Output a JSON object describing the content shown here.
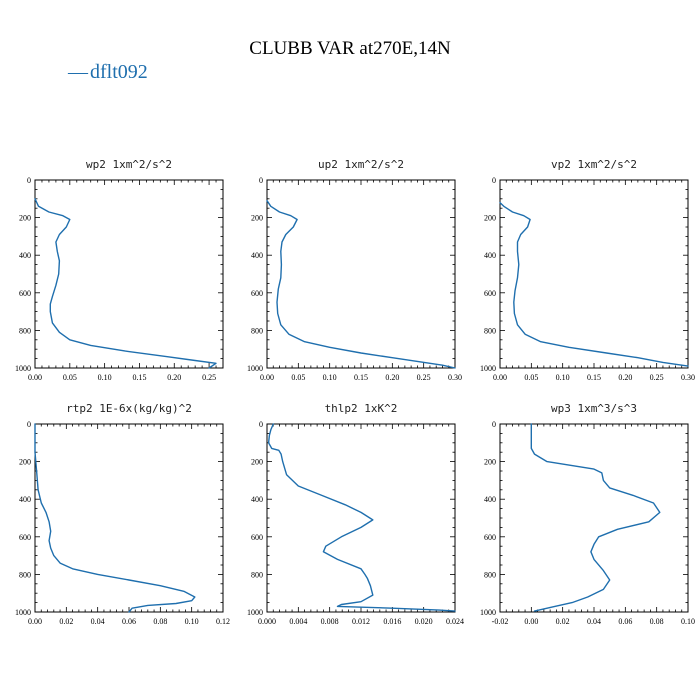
{
  "title": "CLUBB VAR at270E,14N",
  "colors": {
    "series": "#1f6fae"
  },
  "legend": {
    "entries": [
      "dflt092"
    ],
    "marker": "—"
  },
  "chart_data": [
    {
      "type": "line",
      "title": "wp2  1xm^2/s^2",
      "xlim": [
        0,
        0.27
      ],
      "ylim": [
        0,
        1000
      ],
      "y_inverted": true,
      "xticks": [
        0,
        0.05,
        0.1,
        0.15,
        0.2,
        0.25
      ],
      "xtick_labels": [
        "0.00",
        "0.05",
        "0.10",
        "0.15",
        "0.20",
        "0.25"
      ],
      "yticks": [
        0,
        200,
        400,
        600,
        800,
        1000
      ],
      "ytick_labels": [
        "0",
        "200",
        "400",
        "600",
        "800",
        "1000"
      ],
      "series": [
        {
          "name": "dflt092",
          "x": [
            0.0,
            0.005,
            0.02,
            0.04,
            0.05,
            0.045,
            0.035,
            0.03,
            0.032,
            0.035,
            0.034,
            0.03,
            0.025,
            0.022,
            0.022,
            0.025,
            0.035,
            0.05,
            0.08,
            0.13,
            0.19,
            0.23,
            0.26,
            0.25
          ],
          "y": [
            100,
            140,
            170,
            190,
            210,
            250,
            290,
            330,
            380,
            430,
            500,
            560,
            620,
            660,
            700,
            760,
            810,
            850,
            880,
            910,
            940,
            960,
            975,
            1000
          ]
        }
      ]
    },
    {
      "type": "line",
      "title": "up2  1xm^2/s^2",
      "xlim": [
        0,
        0.3
      ],
      "ylim": [
        0,
        1000
      ],
      "y_inverted": true,
      "xticks": [
        0,
        0.05,
        0.1,
        0.15,
        0.2,
        0.25,
        0.3
      ],
      "xtick_labels": [
        "0.00",
        "0.05",
        "0.10",
        "0.15",
        "0.20",
        "0.25",
        "0.30"
      ],
      "yticks": [
        0,
        200,
        400,
        600,
        800,
        1000
      ],
      "ytick_labels": [
        "0",
        "200",
        "400",
        "600",
        "800",
        "1000"
      ],
      "series": [
        {
          "name": "dflt092",
          "x": [
            0.0,
            0.006,
            0.02,
            0.038,
            0.048,
            0.042,
            0.03,
            0.024,
            0.022,
            0.023,
            0.022,
            0.018,
            0.016,
            0.017,
            0.022,
            0.035,
            0.06,
            0.1,
            0.15,
            0.2,
            0.24,
            0.28,
            0.3
          ],
          "y": [
            110,
            140,
            170,
            190,
            210,
            250,
            290,
            330,
            380,
            450,
            520,
            580,
            650,
            710,
            770,
            820,
            860,
            890,
            920,
            945,
            965,
            985,
            1000
          ]
        }
      ]
    },
    {
      "type": "line",
      "title": "vp2  1xm^2/s^2",
      "xlim": [
        0,
        0.3
      ],
      "ylim": [
        0,
        1000
      ],
      "y_inverted": true,
      "xticks": [
        0,
        0.05,
        0.1,
        0.15,
        0.2,
        0.25,
        0.3
      ],
      "xtick_labels": [
        "0.00",
        "0.05",
        "0.10",
        "0.15",
        "0.20",
        "0.25",
        "0.30"
      ],
      "yticks": [
        0,
        200,
        400,
        600,
        800,
        1000
      ],
      "ytick_labels": [
        "0",
        "200",
        "400",
        "600",
        "800",
        "1000"
      ],
      "series": [
        {
          "name": "dflt092",
          "x": [
            0.0,
            0.006,
            0.02,
            0.038,
            0.048,
            0.044,
            0.033,
            0.028,
            0.028,
            0.03,
            0.028,
            0.024,
            0.022,
            0.023,
            0.028,
            0.04,
            0.065,
            0.11,
            0.17,
            0.22,
            0.26,
            0.3
          ],
          "y": [
            120,
            140,
            170,
            190,
            210,
            250,
            290,
            330,
            380,
            450,
            520,
            590,
            650,
            710,
            770,
            820,
            860,
            890,
            920,
            945,
            970,
            990
          ]
        }
      ]
    },
    {
      "type": "line",
      "title": "rtp2  1E-6x(kg/kg)^2",
      "xlim": [
        0,
        0.12
      ],
      "ylim": [
        0,
        1000
      ],
      "y_inverted": true,
      "xticks": [
        0,
        0.02,
        0.04,
        0.06,
        0.08,
        0.1,
        0.12
      ],
      "xtick_labels": [
        "0.00",
        "0.02",
        "0.04",
        "0.06",
        "0.08",
        "0.10",
        "0.12"
      ],
      "yticks": [
        0,
        200,
        400,
        600,
        800,
        1000
      ],
      "ytick_labels": [
        "0",
        "200",
        "400",
        "600",
        "800",
        "1000"
      ],
      "series": [
        {
          "name": "dflt092",
          "x": [
            0.0,
            0.0,
            0.001,
            0.002,
            0.004,
            0.007,
            0.009,
            0.01,
            0.009,
            0.01,
            0.012,
            0.016,
            0.024,
            0.04,
            0.06,
            0.08,
            0.095,
            0.102,
            0.1,
            0.09,
            0.072,
            0.062,
            0.06
          ],
          "y": [
            0,
            150,
            250,
            350,
            420,
            470,
            520,
            570,
            620,
            660,
            700,
            740,
            770,
            800,
            830,
            860,
            890,
            920,
            940,
            955,
            965,
            980,
            1000
          ]
        }
      ]
    },
    {
      "type": "line",
      "title": "thlp2  1xK^2",
      "xlim": [
        0,
        0.024
      ],
      "ylim": [
        0,
        1000
      ],
      "y_inverted": true,
      "xticks": [
        0,
        0.004,
        0.008,
        0.012,
        0.016,
        0.02,
        0.024
      ],
      "xtick_labels": [
        "0.000",
        "0.004",
        "0.008",
        "0.012",
        "0.016",
        "0.020",
        "0.024"
      ],
      "yticks": [
        0,
        200,
        400,
        600,
        800,
        1000
      ],
      "ytick_labels": [
        "0",
        "200",
        "400",
        "600",
        "800",
        "1000"
      ],
      "series": [
        {
          "name": "dflt092",
          "x": [
            0.0008,
            0.0005,
            0.0003,
            0.0002,
            0.0006,
            0.0015,
            0.0018,
            0.002,
            0.0025,
            0.004,
            0.007,
            0.01,
            0.012,
            0.0135,
            0.012,
            0.0095,
            0.0075,
            0.0072,
            0.009,
            0.012,
            0.0125,
            0.0128,
            0.0132,
            0.0135,
            0.012,
            0.0095,
            0.009,
            0.016,
            0.022,
            0.024
          ],
          "y": [
            0,
            30,
            60,
            100,
            130,
            140,
            160,
            200,
            270,
            330,
            380,
            430,
            470,
            510,
            550,
            600,
            650,
            680,
            720,
            770,
            800,
            820,
            860,
            910,
            945,
            960,
            970,
            980,
            990,
            995
          ]
        }
      ]
    },
    {
      "type": "line",
      "title": "wp3  1xm^3/s^3",
      "xlim": [
        -0.02,
        0.1
      ],
      "ylim": [
        0,
        1000
      ],
      "y_inverted": true,
      "xticks": [
        -0.02,
        0,
        0.02,
        0.04,
        0.06,
        0.08,
        0.1
      ],
      "xtick_labels": [
        "-0.02",
        "0.00",
        "0.02",
        "0.04",
        "0.06",
        "0.08",
        "0.10"
      ],
      "yticks": [
        0,
        200,
        400,
        600,
        800,
        1000
      ],
      "ytick_labels": [
        "0",
        "200",
        "400",
        "600",
        "800",
        "1000"
      ],
      "series": [
        {
          "name": "dflt092",
          "x": [
            0.0,
            0.0,
            0.0,
            0.002,
            0.01,
            0.04,
            0.045,
            0.046,
            0.05,
            0.065,
            0.078,
            0.082,
            0.075,
            0.055,
            0.043,
            0.04,
            0.038,
            0.04,
            0.046,
            0.05,
            0.046,
            0.036,
            0.026,
            0.015,
            0.002
          ],
          "y": [
            0,
            80,
            130,
            160,
            200,
            240,
            260,
            300,
            340,
            380,
            420,
            470,
            520,
            560,
            600,
            640,
            680,
            720,
            780,
            830,
            880,
            920,
            950,
            970,
            995
          ]
        }
      ]
    }
  ]
}
